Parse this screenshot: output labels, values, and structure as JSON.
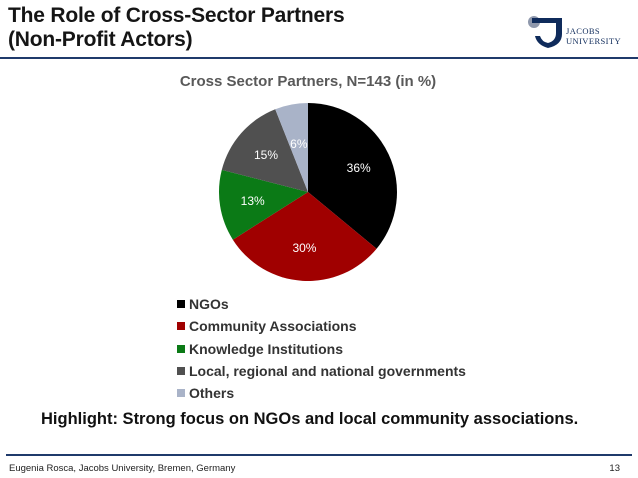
{
  "slide": {
    "title_line1": "The Role of Cross-Sector Partners",
    "title_line2": "(Non-Profit Actors)",
    "highlight": "Highlight: Strong focus on NGOs and local community associations.",
    "footer_left": "Eugenia Rosca, Jacobs University, Bremen, Germany",
    "page_number": "13"
  },
  "logo": {
    "line1": "JACOBS",
    "line2": "UNIVERSITY",
    "color": "#0f2b5b",
    "icon": "jacobs-shield-icon"
  },
  "chart_data": {
    "type": "pie",
    "title": "Cross Sector Partners, N=143 (in %)",
    "categories": [
      "NGOs",
      "Community Associations",
      "Knowledge Institutions",
      "Local, regional and national governments",
      "Others"
    ],
    "values": [
      36,
      30,
      13,
      15,
      6
    ],
    "labels": [
      "36%",
      "30%",
      "13%",
      "15%",
      "6%"
    ],
    "colors": [
      "#000000",
      "#a00000",
      "#0b7a16",
      "#505050",
      "#a9b3c8"
    ],
    "label_colors": [
      "#ffffff",
      "#ffffff",
      "#ffffff",
      "#ffffff",
      "#ffffff"
    ],
    "legend_position": "bottom-left"
  }
}
